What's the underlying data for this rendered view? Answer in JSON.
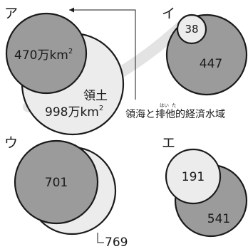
{
  "colors": {
    "dark_circle": "#9b9b9b",
    "light_circle": "#ececec",
    "stroke": "#1a1a1a",
    "background": "#ffffff",
    "swoosh": "#e3e3e3"
  },
  "panels": {
    "a": {
      "label": "ア",
      "inner_value": "470万km",
      "inner_sup": "2",
      "outer_label": "領土",
      "outer_value": "998万km",
      "outer_sup": "2"
    },
    "i": {
      "label": "イ",
      "small_value": "38",
      "large_value": "447"
    },
    "u": {
      "label": "ウ",
      "large_value": "701",
      "outer_value": "769"
    },
    "e": {
      "label": "エ",
      "small_value": "191",
      "large_value": "541"
    }
  },
  "note": {
    "text_before": "領海と",
    "ruby_kanji": "排",
    "ruby_kana": "はい",
    "text_after": "他的経済水域",
    "ruby_kanji_2": "他",
    "ruby_kana_2": "た"
  }
}
